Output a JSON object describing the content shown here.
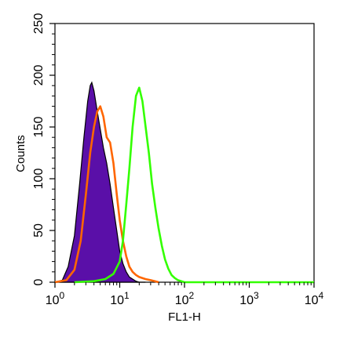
{
  "chart_data": {
    "type": "area",
    "title": "",
    "xlabel": "FL1-H",
    "ylabel": "Counts",
    "x_scale": "log",
    "xlim": [
      1,
      10000
    ],
    "ylim": [
      0,
      250
    ],
    "grid": false,
    "legend": "none",
    "x_ticks": [
      {
        "base": "10",
        "exp": "0"
      },
      {
        "base": "10",
        "exp": "1"
      },
      {
        "base": "10",
        "exp": "2"
      },
      {
        "base": "10",
        "exp": "3"
      },
      {
        "base": "10",
        "exp": "4"
      }
    ],
    "y_ticks": [
      "0",
      "50",
      "100",
      "150",
      "200",
      "250"
    ],
    "y_tick_values": [
      0,
      50,
      100,
      150,
      200,
      250
    ],
    "series": [
      {
        "style": "filled",
        "color": "#5a0fa8",
        "edge_color": "#000000",
        "x": [
          1.0,
          1.3,
          1.6,
          2.0,
          2.4,
          2.8,
          3.2,
          3.5,
          3.7,
          4.0,
          4.5,
          5.0,
          5.6,
          6.3,
          7.1,
          8.0,
          9.0,
          10.0,
          11.2,
          12.6,
          14.1,
          15.8,
          17.8,
          20.0,
          25.0
        ],
        "y": [
          0,
          2,
          15,
          45,
          95,
          140,
          175,
          190,
          193,
          185,
          165,
          148,
          130,
          115,
          95,
          72,
          50,
          30,
          18,
          10,
          5,
          3,
          1,
          0,
          0
        ]
      },
      {
        "style": "line",
        "color": "#ff6600",
        "x": [
          1.0,
          1.5,
          2.0,
          2.5,
          3.0,
          3.5,
          4.0,
          4.5,
          5.0,
          5.6,
          6.3,
          7.1,
          8.0,
          9.0,
          10.0,
          11.2,
          12.6,
          14.1,
          15.8,
          17.8,
          20.0,
          25.0,
          30.0,
          40.0
        ],
        "y": [
          0,
          2,
          12,
          40,
          85,
          125,
          150,
          165,
          170,
          160,
          140,
          135,
          115,
          85,
          60,
          40,
          25,
          15,
          10,
          7,
          5,
          3,
          2,
          0
        ]
      },
      {
        "style": "line",
        "color": "#33ff00",
        "x": [
          2.0,
          4.0,
          6.0,
          8.0,
          10.0,
          11.2,
          12.6,
          14.1,
          15.8,
          17.8,
          20.0,
          22.4,
          25.1,
          28.2,
          31.6,
          35.5,
          39.8,
          44.7,
          50.1,
          56.2,
          63.1,
          70.8,
          79.4,
          89.1,
          100.0,
          10000.0
        ],
        "y": [
          0,
          1,
          3,
          8,
          20,
          40,
          75,
          110,
          150,
          180,
          188,
          175,
          150,
          125,
          95,
          72,
          52,
          35,
          22,
          13,
          7,
          4,
          2,
          1,
          0,
          0
        ]
      }
    ]
  }
}
